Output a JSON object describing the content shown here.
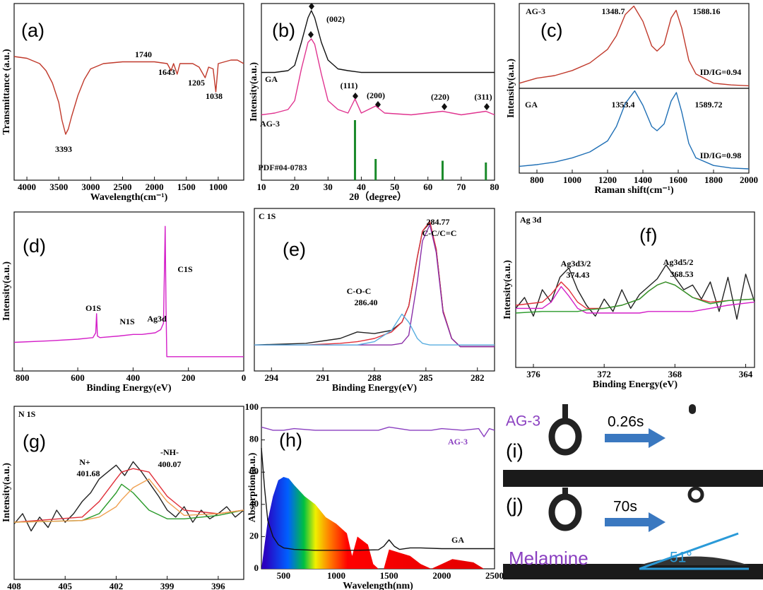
{
  "chart_data": [
    {
      "type": "line",
      "panel_label": "(a)",
      "xlabel": "Wavelength(cm⁻¹)",
      "ylabel": "Transmittance (a.u.)",
      "xlim": [
        4200,
        600
      ],
      "ylim": [
        0,
        100
      ],
      "xticks": [
        4000,
        3500,
        3000,
        2500,
        2000,
        1500,
        1000
      ],
      "x": [
        4200,
        4000,
        3800,
        3700,
        3600,
        3500,
        3450,
        3393,
        3350,
        3300,
        3200,
        3100,
        3000,
        2800,
        2500,
        2200,
        2000,
        1800,
        1740,
        1700,
        1643,
        1600,
        1400,
        1300,
        1205,
        1150,
        1080,
        1038,
        1000,
        900,
        800,
        700,
        600
      ],
      "series": [
        {
          "color": "#c0392b",
          "values": [
            70,
            69,
            66,
            62,
            55,
            44,
            34,
            26,
            29,
            36,
            48,
            57,
            63,
            66,
            67,
            67,
            67,
            66,
            62,
            66,
            60,
            66,
            66,
            64,
            58,
            64,
            63,
            50,
            66,
            67,
            68,
            68,
            66
          ]
        }
      ],
      "annotations": [
        "3393",
        "1740",
        "1643",
        "1205",
        "1038"
      ]
    },
    {
      "type": "line",
      "panel_label": "(b)",
      "xlabel": "2θ（degree）",
      "ylabel": "Intensity(a.u.)",
      "xlim": [
        10,
        80
      ],
      "ylim": [
        0,
        100
      ],
      "xticks": [
        10,
        20,
        30,
        40,
        50,
        60,
        70,
        80
      ],
      "series": [
        {
          "name": "GA",
          "color": "#111111",
          "kind": "line",
          "x": [
            10,
            14,
            18,
            20,
            22,
            24,
            25,
            26,
            28,
            30,
            33,
            36,
            40,
            45,
            50,
            60,
            70,
            80
          ],
          "values": [
            61,
            61,
            62,
            65,
            78,
            92,
            96,
            92,
            78,
            68,
            63,
            62,
            61,
            61,
            61,
            61,
            61,
            61
          ]
        },
        {
          "name": "AG-3",
          "color": "#e0338f",
          "kind": "line",
          "x": [
            10,
            14,
            18,
            20,
            22,
            24,
            25,
            26,
            28,
            30,
            33,
            36,
            38.1,
            40,
            44.3,
            47,
            55,
            64.4,
            70,
            77.4,
            80
          ],
          "values": [
            37,
            38,
            40,
            45,
            63,
            78,
            80,
            77,
            60,
            45,
            40,
            38,
            46,
            38,
            42,
            38,
            37,
            39,
            37,
            39,
            37
          ]
        },
        {
          "name": "PDF#04-0783",
          "color": "#1a8a2a",
          "kind": "stem",
          "x": [
            38.1,
            44.3,
            64.4,
            77.4
          ],
          "values": [
            34,
            12,
            11,
            10
          ]
        }
      ],
      "annotations": [
        "(002)",
        "(111)",
        "(200)",
        "(220)",
        "(311)"
      ]
    },
    {
      "type": "line",
      "panel_label": "(c)",
      "ylabel": "Intensity(a.u.)",
      "xlim": [
        700,
        2000
      ],
      "ylim": [
        0,
        100
      ],
      "series": [
        {
          "name": "AG-3",
          "color": "#c0392b",
          "x": [
            700,
            800,
            900,
            1000,
            1100,
            1200,
            1250,
            1300,
            1348.7,
            1400,
            1450,
            1480,
            1520,
            1560,
            1588.16,
            1620,
            1660,
            1700,
            1800,
            1900,
            2000
          ],
          "values": [
            6,
            12,
            15,
            21,
            30,
            46,
            62,
            87,
            97,
            79,
            50,
            44,
            52,
            83,
            92,
            71,
            33,
            17,
            6,
            4,
            3
          ]
        }
      ],
      "annotations": [
        "1348.7",
        "1588.16",
        "ID/IG=0.94"
      ]
    },
    {
      "type": "line",
      "xlabel": "Raman shift(cm⁻¹)",
      "xlim": [
        700,
        2000
      ],
      "ylim": [
        0,
        100
      ],
      "xticks": [
        800,
        1000,
        1200,
        1400,
        1600,
        1800,
        2000
      ],
      "series": [
        {
          "name": "GA",
          "color": "#1f6fb5",
          "x": [
            700,
            800,
            900,
            1000,
            1100,
            1200,
            1250,
            1300,
            1353.4,
            1400,
            1450,
            1480,
            1520,
            1560,
            1589.72,
            1620,
            1660,
            1700,
            1800,
            1900,
            2000
          ],
          "values": [
            8,
            10,
            13,
            18,
            25,
            38,
            55,
            82,
            97,
            80,
            55,
            50,
            58,
            85,
            95,
            72,
            35,
            18,
            9,
            6,
            5
          ]
        }
      ],
      "annotations": [
        "1353.4",
        "1589.72",
        "ID/IG=0.98"
      ]
    },
    {
      "type": "line",
      "panel_label": "(d)",
      "xlabel": "Binding Energy(eV)",
      "ylabel": "Intensity(a.u.)",
      "xlim": [
        830,
        0
      ],
      "ylim": [
        0,
        100
      ],
      "xticks": [
        800,
        600,
        400,
        200,
        0
      ],
      "x": [
        830,
        700,
        600,
        545,
        535,
        532,
        529,
        520,
        450,
        400,
        368,
        320,
        300,
        290,
        287,
        284,
        281,
        278,
        260,
        200,
        100,
        0
      ],
      "series": [
        {
          "color": "#d41fc8",
          "values": [
            18,
            19,
            20,
            21,
            24,
            36,
            22,
            21,
            22,
            23,
            23,
            24,
            26,
            30,
            60,
            91,
            40,
            9,
            9,
            9,
            9,
            9
          ]
        }
      ],
      "annotations": [
        "O1S",
        "N1S",
        "Ag3d",
        "C1S"
      ]
    },
    {
      "type": "line",
      "panel_label": "(e)",
      "title": "C 1S",
      "xlabel": "Binding Energy(eV)",
      "xlim": [
        295,
        281
      ],
      "ylim": [
        0,
        100
      ],
      "xticks": [
        294,
        291,
        288,
        285,
        282
      ],
      "x": [
        295,
        292,
        290,
        289,
        288,
        287,
        286.4,
        286,
        285.5,
        285.2,
        284.77,
        284.4,
        284,
        283.5,
        283,
        282,
        281
      ],
      "series": [
        {
          "color": "#222222",
          "values": [
            16,
            17,
            20,
            24,
            23,
            25,
            30,
            40,
            70,
            86,
            91,
            75,
            37,
            20,
            15,
            15,
            15
          ]
        },
        {
          "color": "#e0303a",
          "values": [
            16,
            16,
            17,
            18,
            20,
            24,
            30,
            40,
            70,
            86,
            92,
            75,
            37,
            20,
            15,
            15,
            15
          ]
        },
        {
          "color": "#8a2fa8",
          "values": [
            16,
            16,
            16,
            16,
            16,
            16,
            17,
            22,
            55,
            80,
            90,
            73,
            36,
            20,
            15,
            15,
            15
          ]
        },
        {
          "color": "#5aaee0",
          "values": [
            16,
            16,
            16,
            16,
            18,
            25,
            35,
            30,
            20,
            17,
            16,
            16,
            16,
            16,
            16,
            16,
            16
          ]
        }
      ],
      "annotations": [
        "284.77",
        "C-C/C=C",
        "C-O-C",
        "286.40"
      ]
    },
    {
      "type": "line",
      "panel_label": "(f)",
      "title": "Ag 3d",
      "xlabel": "Binding Energy(eV)",
      "ylabel": "Intensity(a.u.)",
      "xlim": [
        377,
        363.5
      ],
      "ylim": [
        0,
        100
      ],
      "xticks": [
        376,
        372,
        368,
        364
      ],
      "series": [
        {
          "color": "#222222",
          "x": [
            377,
            376.5,
            376,
            375.5,
            375,
            374.5,
            374,
            373.5,
            373,
            372.5,
            372,
            371.5,
            371,
            370.5,
            370,
            369.5,
            369,
            368.5,
            368,
            367.5,
            367,
            366.5,
            366,
            365.5,
            365,
            364.5,
            364,
            363.5
          ],
          "values": [
            38,
            45,
            33,
            50,
            42,
            58,
            64,
            50,
            40,
            33,
            44,
            36,
            50,
            38,
            47,
            52,
            57,
            66,
            58,
            50,
            53,
            44,
            55,
            36,
            58,
            31,
            60,
            42
          ]
        },
        {
          "color": "#e0303a",
          "x": [
            377,
            375.5,
            375,
            374.43,
            374,
            373.5,
            373,
            372,
            371,
            370,
            369.5,
            369,
            368.53,
            368,
            367.5,
            367,
            366,
            365,
            363.5
          ],
          "values": [
            40,
            42,
            47,
            55,
            50,
            42,
            38,
            38,
            40,
            44,
            49,
            53,
            55,
            53,
            49,
            45,
            42,
            43,
            44
          ]
        },
        {
          "color": "#d41fc8",
          "x": [
            377,
            375.5,
            375,
            374.43,
            374,
            373.5,
            373,
            372,
            371,
            370,
            369.5,
            369,
            368.53,
            368,
            367.5,
            367,
            366,
            365,
            363.5
          ],
          "values": [
            38,
            38,
            42,
            52,
            46,
            38,
            35,
            35,
            35,
            35,
            36,
            36,
            36,
            36,
            36,
            36,
            38,
            40,
            42
          ]
        },
        {
          "color": "#2a9a2a",
          "x": [
            377,
            375.5,
            375,
            374.43,
            374,
            373.5,
            373,
            372,
            371,
            370,
            369.5,
            369,
            368.53,
            368,
            367.5,
            367,
            366,
            365,
            363.5
          ],
          "values": [
            35,
            36,
            36,
            36,
            36,
            36,
            37,
            38,
            40,
            44,
            49,
            53,
            55,
            53,
            49,
            45,
            41,
            43,
            44
          ]
        }
      ],
      "annotations": [
        "Ag3d3/2",
        "374.43",
        "Ag3d5/2",
        "368.53"
      ]
    },
    {
      "type": "line",
      "panel_label": "(g)",
      "title": "N 1S",
      "xlabel": "Binding Energy(eV)",
      "ylabel": "Intensity(a.u.)",
      "xlim": [
        408,
        394.5
      ],
      "ylim": [
        0,
        100
      ],
      "xticks": [
        408,
        405,
        402,
        399,
        396
      ],
      "series": [
        {
          "color": "#222222",
          "x": [
            408,
            407.5,
            407,
            406.5,
            406,
            405.5,
            405,
            404.5,
            404,
            403.5,
            403,
            402.5,
            402,
            401.5,
            401,
            400.5,
            400,
            399.5,
            399,
            398.5,
            398,
            397.5,
            397,
            396.5,
            396,
            395.5,
            395,
            394.5
          ],
          "values": [
            32,
            38,
            28,
            36,
            30,
            40,
            33,
            38,
            45,
            50,
            58,
            62,
            66,
            60,
            68,
            62,
            55,
            48,
            40,
            36,
            42,
            33,
            40,
            35,
            38,
            42,
            36,
            40
          ]
        },
        {
          "color": "#e0303a",
          "x": [
            408,
            404,
            403,
            402,
            401.68,
            401,
            400.07,
            399,
            398,
            396,
            394.5
          ],
          "values": [
            33,
            36,
            45,
            58,
            62,
            64,
            62,
            48,
            40,
            38,
            40
          ]
        },
        {
          "color": "#2a9a2a",
          "x": [
            408,
            404,
            403,
            402,
            401.68,
            401,
            400.07,
            399,
            398,
            396,
            394.5
          ],
          "values": [
            33,
            34,
            38,
            50,
            55,
            50,
            40,
            35,
            35,
            37,
            40
          ]
        },
        {
          "color": "#f0a050",
          "x": [
            408,
            404,
            403,
            402,
            401.68,
            401,
            400.07,
            399,
            398,
            396,
            394.5
          ],
          "values": [
            33,
            34,
            36,
            42,
            46,
            53,
            58,
            45,
            37,
            38,
            40
          ]
        }
      ],
      "annotations": [
        "N+",
        "401.68",
        "-NH-",
        "400.07"
      ]
    },
    {
      "type": "line",
      "panel_label": "(h)",
      "xlabel": "Wavelength(nm)",
      "ylabel": "Absorption(a.u.)",
      "xlim": [
        290,
        2500
      ],
      "ylim": [
        0,
        100
      ],
      "xticks": [
        500,
        1000,
        1500,
        2000,
        2500
      ],
      "yticks": [
        0,
        20,
        40,
        60,
        80,
        100
      ],
      "series": [
        {
          "kind": "area",
          "color": "#e00000",
          "x": [
            290,
            350,
            400,
            450,
            500,
            550,
            600,
            700,
            800,
            900,
            1000,
            1100,
            1150,
            1200,
            1300,
            1350,
            1400,
            1450,
            1500,
            1600,
            1700,
            1800,
            1900,
            2000,
            2100,
            2300,
            2400,
            2500
          ],
          "values": [
            0,
            30,
            45,
            55,
            57,
            56,
            52,
            45,
            40,
            32,
            28,
            22,
            8,
            20,
            15,
            3,
            0,
            0,
            12,
            10,
            8,
            3,
            0,
            3,
            6,
            4,
            0,
            0
          ]
        },
        {
          "name": "AG-3",
          "color": "#8a3fc0",
          "kind": "line",
          "x": [
            290,
            400,
            500,
            600,
            800,
            1000,
            1200,
            1400,
            1500,
            1700,
            1900,
            2000,
            2200,
            2350,
            2400,
            2450,
            2500
          ],
          "values": [
            88,
            86,
            86,
            87,
            86,
            86,
            86,
            86,
            88,
            86,
            86,
            87,
            86,
            87,
            82,
            87,
            86
          ]
        },
        {
          "name": "GA",
          "color": "#111111",
          "kind": "line",
          "x": [
            290,
            320,
            350,
            400,
            450,
            500,
            600,
            800,
            1000,
            1200,
            1400,
            1450,
            1500,
            1550,
            1600,
            1700,
            1800,
            2000,
            2500
          ],
          "values": [
            75,
            50,
            30,
            20,
            15,
            13,
            12,
            11.5,
            11.5,
            11.5,
            11.8,
            14,
            18,
            14,
            12,
            13,
            13,
            12.5,
            12.5
          ]
        }
      ]
    }
  ],
  "images": {
    "i": {
      "label": "(i)",
      "sample": "AG-3",
      "time": "0.26s"
    },
    "j": {
      "label": "(j)",
      "sample": "Melamine",
      "time": "70s",
      "angle": "51°"
    }
  }
}
